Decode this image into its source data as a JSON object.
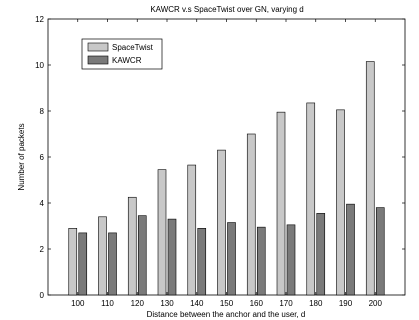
{
  "chart_data": {
    "type": "bar",
    "title": "KAWCR v.s SpaceTwist over GN, varying d",
    "xlabel": "Distance between the anchor and the user, d",
    "ylabel": "Number of packets",
    "categories": [
      "100",
      "110",
      "120",
      "130",
      "140",
      "150",
      "160",
      "170",
      "180",
      "190",
      "200"
    ],
    "ylim": [
      0,
      12
    ],
    "yticks": [
      0,
      2,
      4,
      6,
      8,
      10,
      12
    ],
    "grid": false,
    "legend_position": "top-left",
    "series": [
      {
        "name": "SpaceTwist",
        "color": "#c8c8c8",
        "values": [
          2.9,
          3.4,
          4.25,
          5.45,
          5.65,
          6.3,
          7.0,
          7.95,
          8.35,
          8.05,
          10.15
        ]
      },
      {
        "name": "KAWCR",
        "color": "#7a7a7a",
        "values": [
          2.7,
          2.7,
          3.45,
          3.3,
          2.9,
          3.15,
          2.95,
          3.05,
          3.55,
          3.95,
          3.8
        ]
      }
    ]
  }
}
